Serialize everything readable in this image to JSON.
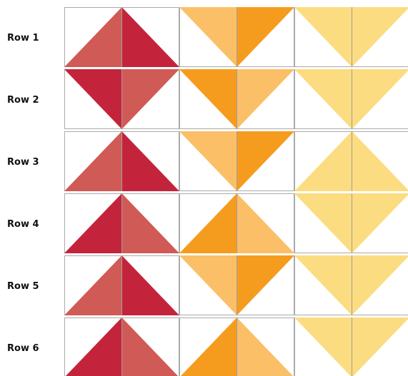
{
  "rows": [
    {
      "label": "Row 1",
      "blocks": [
        {
          "direction": "up",
          "left_color": "#d05a55",
          "right_color": "#c4243b"
        },
        {
          "direction": "down",
          "left_color": "#fbbf68",
          "right_color": "#f59c1f"
        },
        {
          "direction": "down",
          "left_color": "#fcdc80",
          "right_color": "#fcdc80"
        }
      ]
    },
    {
      "label": "Row 2",
      "blocks": [
        {
          "direction": "down",
          "left_color": "#c4243b",
          "right_color": "#d05a55"
        },
        {
          "direction": "down",
          "left_color": "#f59c1f",
          "right_color": "#fbbf68"
        },
        {
          "direction": "down",
          "left_color": "#fcdc80",
          "right_color": "#fcdc80"
        }
      ]
    },
    {
      "label": "Row 3",
      "blocks": [
        {
          "direction": "up",
          "left_color": "#d05a55",
          "right_color": "#c4243b"
        },
        {
          "direction": "down",
          "left_color": "#fbbf68",
          "right_color": "#f59c1f"
        },
        {
          "direction": "up",
          "left_color": "#fcdc80",
          "right_color": "#fcdc80"
        }
      ]
    },
    {
      "label": "Row 4",
      "blocks": [
        {
          "direction": "up",
          "left_color": "#c4243b",
          "right_color": "#d05a55"
        },
        {
          "direction": "up",
          "left_color": "#f59c1f",
          "right_color": "#fbbf68"
        },
        {
          "direction": "down",
          "left_color": "#fcdc80",
          "right_color": "#fcdc80"
        }
      ]
    },
    {
      "label": "Row 5",
      "blocks": [
        {
          "direction": "up",
          "left_color": "#d05a55",
          "right_color": "#c4243b"
        },
        {
          "direction": "down",
          "left_color": "#fbbf68",
          "right_color": "#f59c1f"
        },
        {
          "direction": "down",
          "left_color": "#fcdc80",
          "right_color": "#fcdc80"
        }
      ]
    },
    {
      "label": "Row 6",
      "blocks": [
        {
          "direction": "up",
          "left_color": "#c4243b",
          "right_color": "#d05a55"
        },
        {
          "direction": "up",
          "left_color": "#f59c1f",
          "right_color": "#fbbf68"
        },
        {
          "direction": "down",
          "left_color": "#fcdc80",
          "right_color": "#fcdc80"
        }
      ]
    }
  ]
}
